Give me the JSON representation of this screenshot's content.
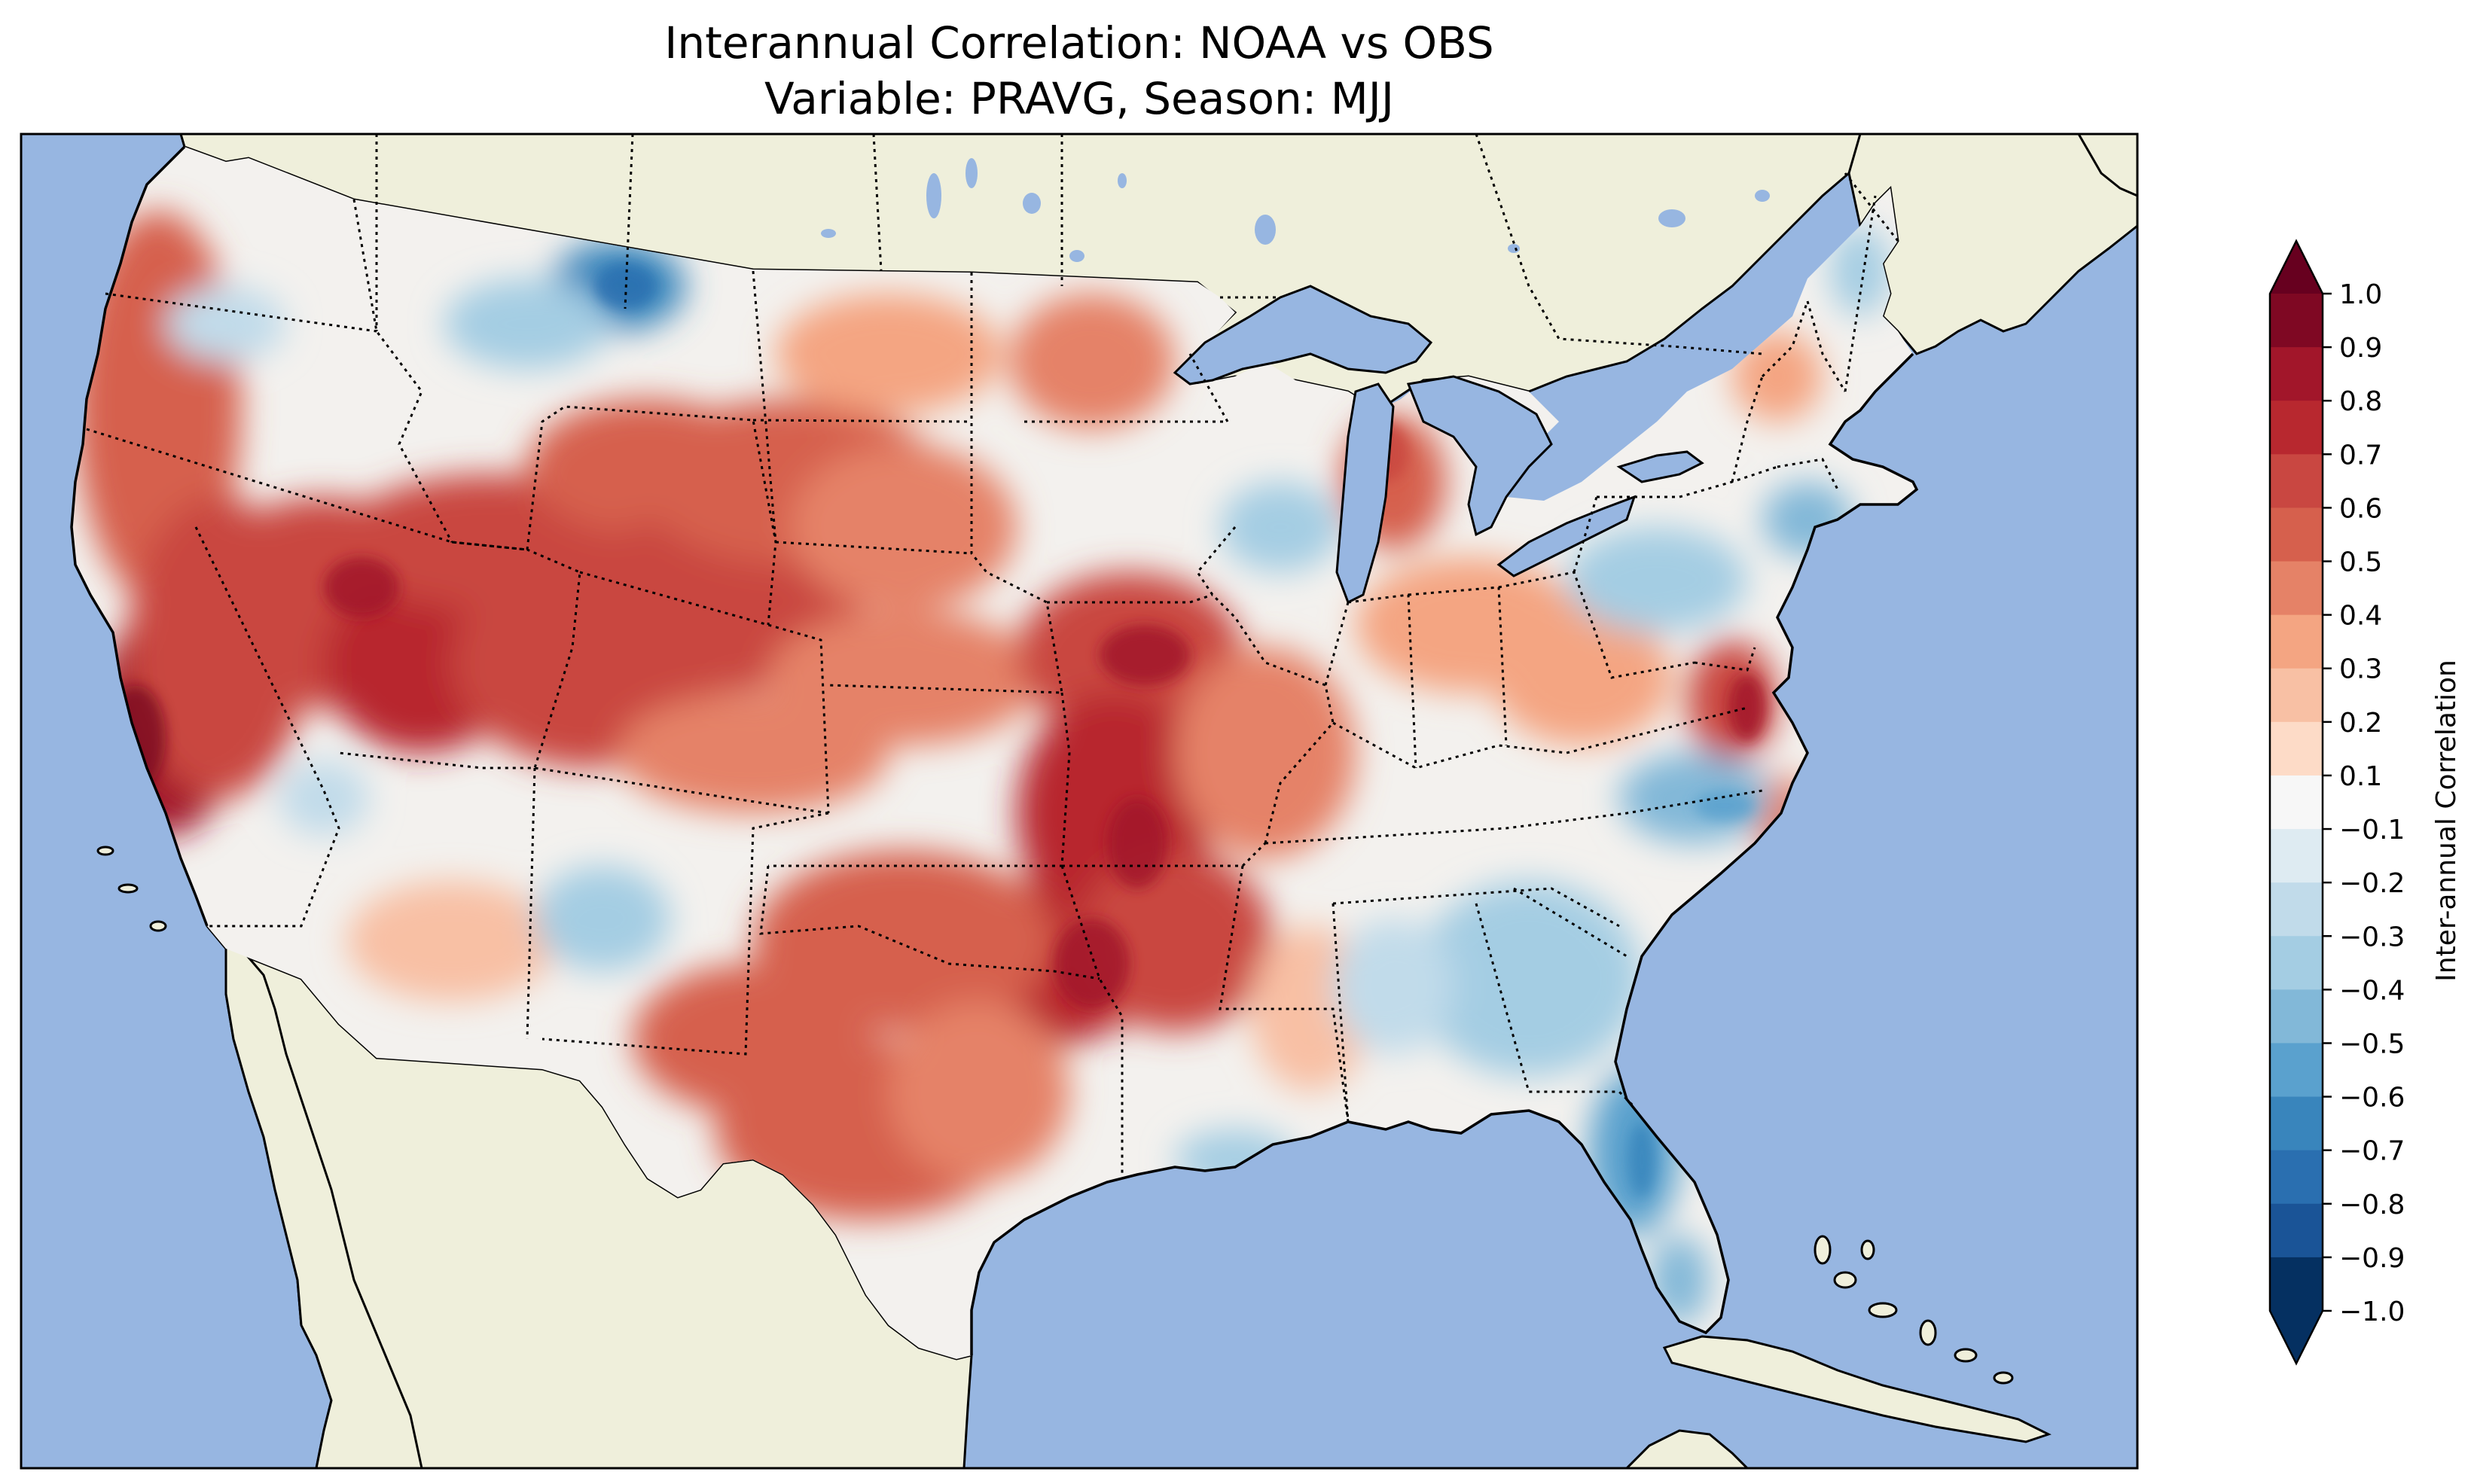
{
  "title": {
    "line1": "Interannual Correlation: NOAA vs OBS",
    "line2": "Variable: PRAVG, Season: MJJ"
  },
  "colorbar": {
    "label": "Inter-annual Correlation",
    "ticks": [
      "1.0",
      "0.9",
      "0.8",
      "0.7",
      "0.6",
      "0.5",
      "0.4",
      "0.3",
      "0.2",
      "0.1",
      "−0.1",
      "−0.2",
      "−0.3",
      "−0.4",
      "−0.5",
      "−0.6",
      "−0.7",
      "−0.8",
      "−0.9",
      "−1.0"
    ],
    "colors": [
      "#67001f",
      "#7f0823",
      "#a2162a",
      "#b8282f",
      "#c94741",
      "#d6604d",
      "#e58267",
      "#f4a582",
      "#f8c0a4",
      "#fddbc7",
      "#f7f7f7",
      "#deebf2",
      "#c1dbea",
      "#a4cde3",
      "#82b8d8",
      "#5aa1ce",
      "#3985bc",
      "#2a6fb0",
      "#1a5497",
      "#053061"
    ]
  },
  "map": {
    "ocean_color": "#97b6e1",
    "land_color": "#efefdb",
    "lake_color": "#97b6e1"
  }
}
